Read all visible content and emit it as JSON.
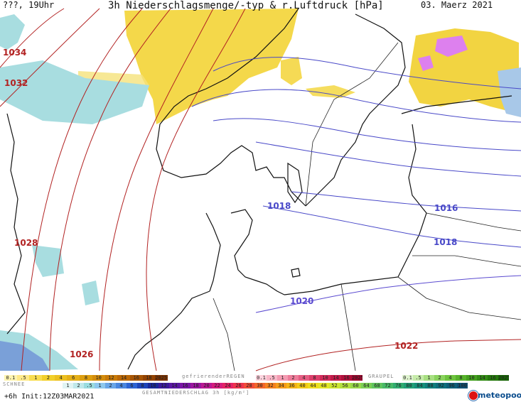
{
  "header": {
    "location_time": "???, 19Uhr",
    "title": "3h Niederschlagsmenge/-typ & r.Luftdruck [hPa]",
    "date": "03. Maerz 2021"
  },
  "isobars": {
    "high_pressure_color": "#b22222",
    "low_pressure_color": "#4848c8",
    "labels": [
      "1034",
      "1032",
      "1028",
      "1026",
      "1022",
      "1020",
      "1018",
      "1016",
      "1018"
    ]
  },
  "legend": {
    "snow_title": "SCHNEE",
    "snow_values": [
      "0.1",
      ".5",
      "1",
      "2",
      "4",
      "6",
      "8",
      "10",
      "12",
      "14",
      "16",
      "18",
      "2025+"
    ],
    "rain_title": "gefrierenderREGEN",
    "rain_values": [
      "0.1",
      ".5",
      "1",
      "2",
      "4",
      "8",
      "10",
      "14",
      "16",
      "2025+"
    ],
    "graupel_title": "GRAUPEL",
    "graupel_values": [
      "0.1",
      ".5",
      "1",
      "2",
      "4",
      "8",
      "10",
      "14",
      "16",
      "2025+"
    ],
    "total_title": "GESAMTNIEDERSCHLAG 3h [kg/m²]",
    "total_values": [
      "1",
      "2",
      ".5",
      "1",
      "2",
      "4",
      "6",
      "8",
      "10",
      "12",
      "14",
      "16",
      "18",
      "20",
      "22",
      "24",
      "26",
      "28",
      "30",
      "32",
      "34",
      "36",
      "40",
      "44",
      "48",
      "52",
      "56",
      "60",
      "64",
      "68",
      "72",
      "76",
      "80",
      "84",
      "88",
      "92",
      "96",
      "100"
    ]
  },
  "run_info": "+6h Init:12Z03MAR2021",
  "brand": "meteopool.org"
}
